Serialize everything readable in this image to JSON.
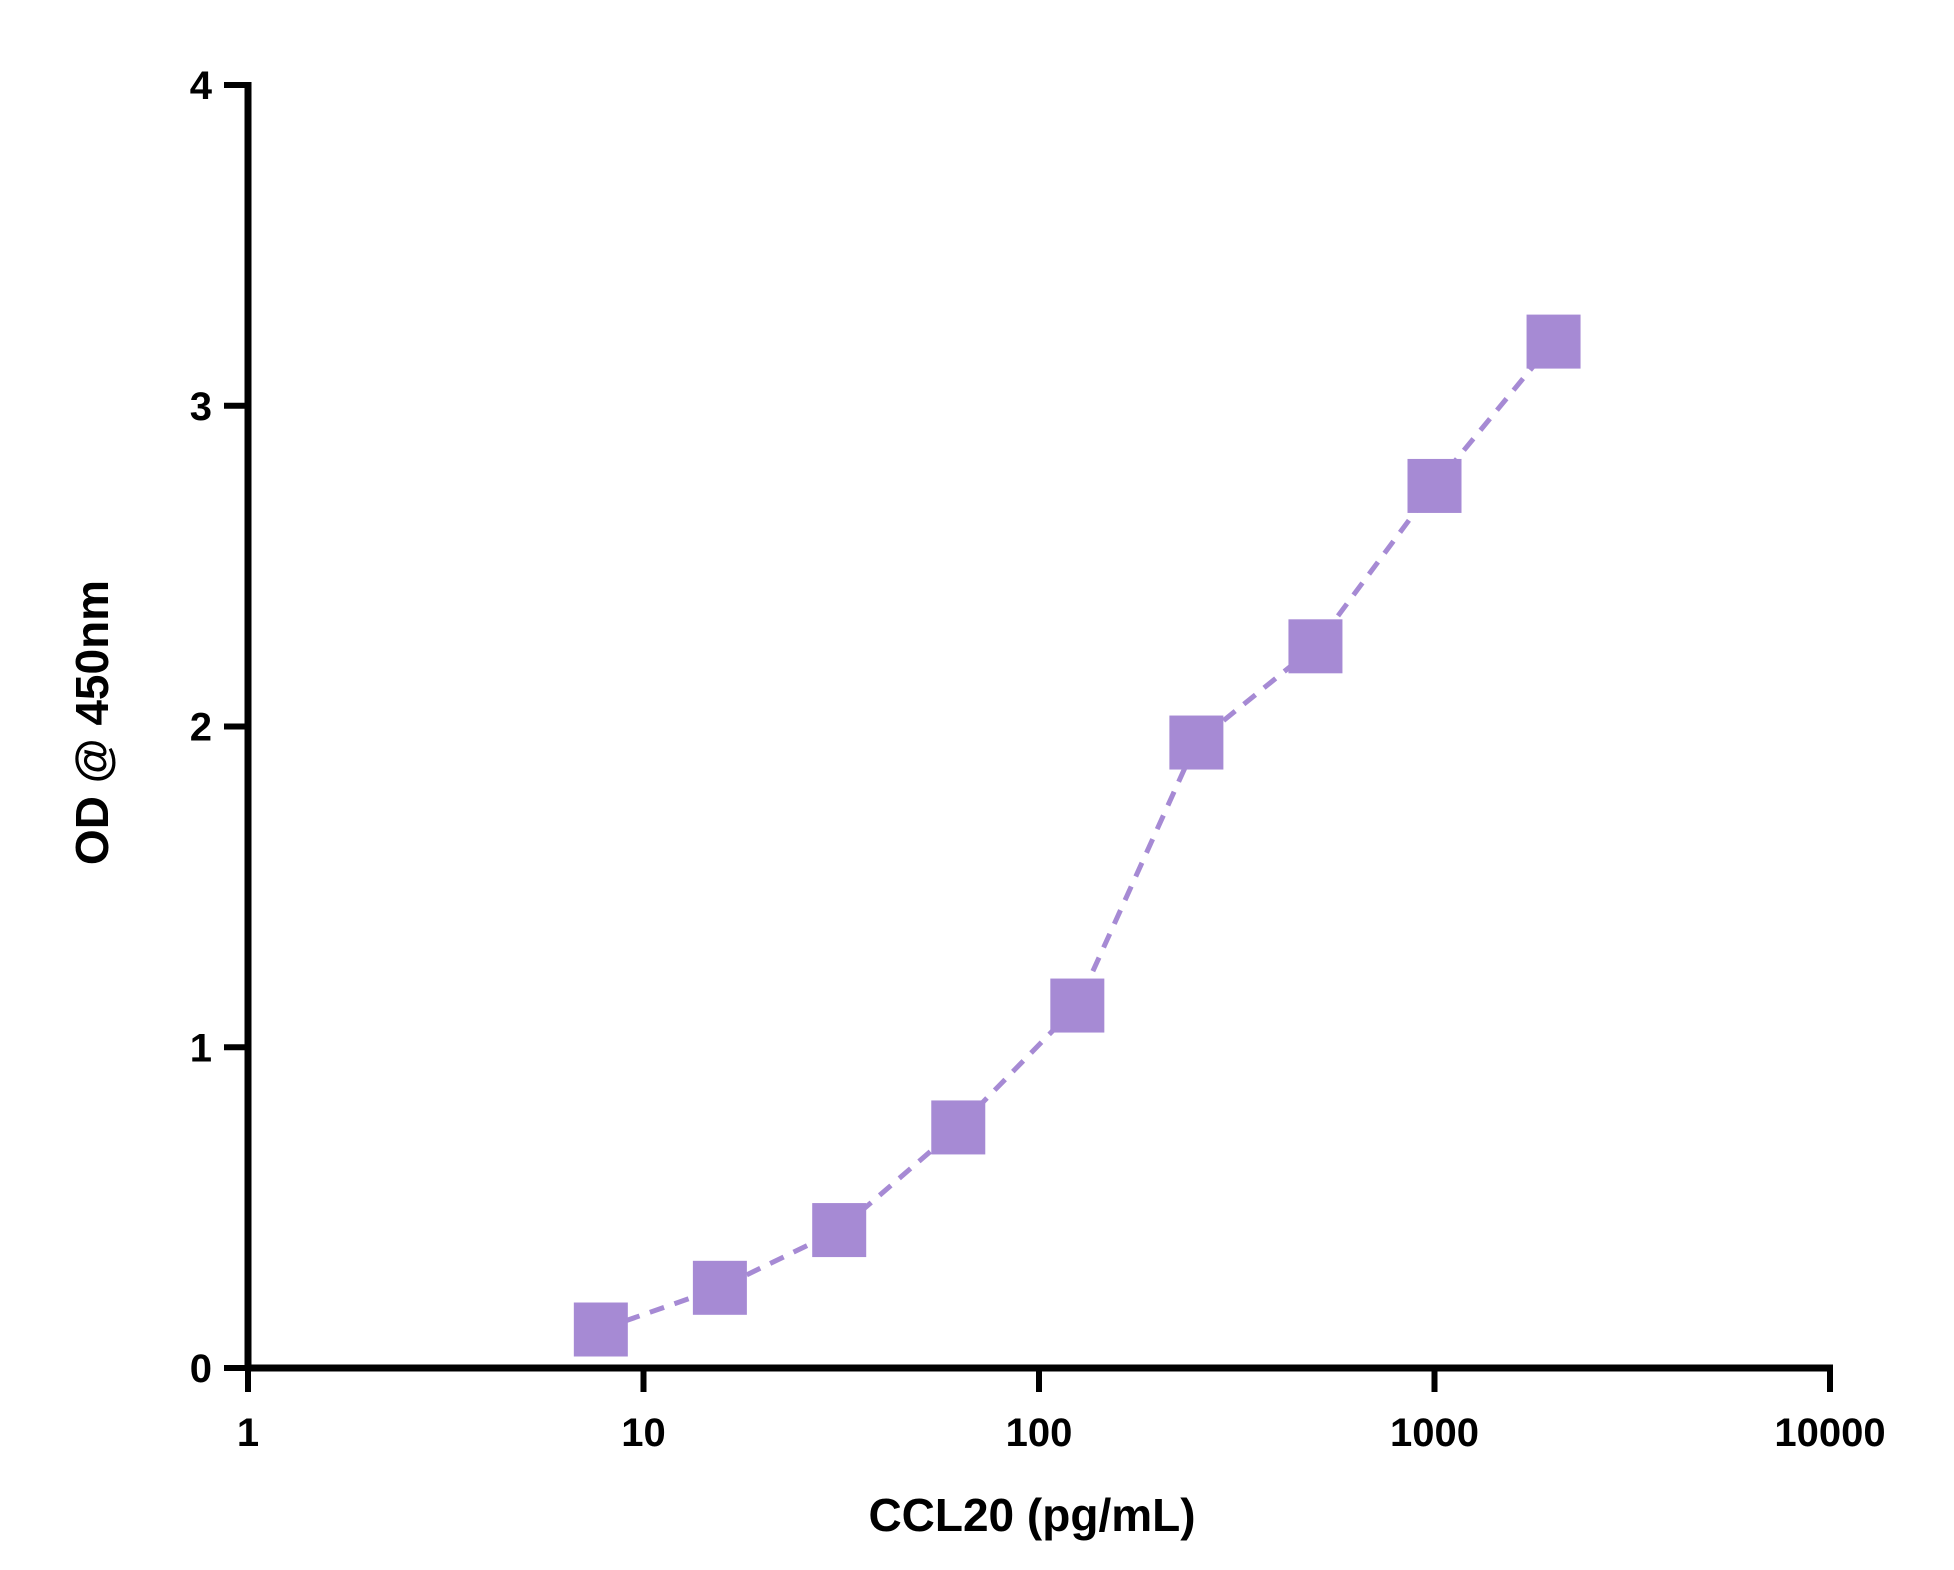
{
  "chart_data": {
    "type": "scatter",
    "xlabel": "CCL20 (pg/mL)",
    "ylabel": "OD @ 450nm",
    "x_scale": "log",
    "xlim": [
      1,
      10000
    ],
    "ylim": [
      0,
      4
    ],
    "x_ticks": [
      "1",
      "10",
      "100",
      "1000",
      "10000"
    ],
    "y_ticks": [
      "0",
      "1",
      "2",
      "3",
      "4"
    ],
    "grid": false,
    "legend": "none",
    "series": [
      {
        "marker": "square",
        "line": "dashed",
        "color": "#a68ad4",
        "x": [
          7.8,
          15.6,
          31.25,
          62.5,
          125,
          250,
          500,
          1000,
          2000
        ],
        "y": [
          0.12,
          0.25,
          0.43,
          0.75,
          1.13,
          1.95,
          2.25,
          2.75,
          3.2
        ]
      }
    ]
  }
}
